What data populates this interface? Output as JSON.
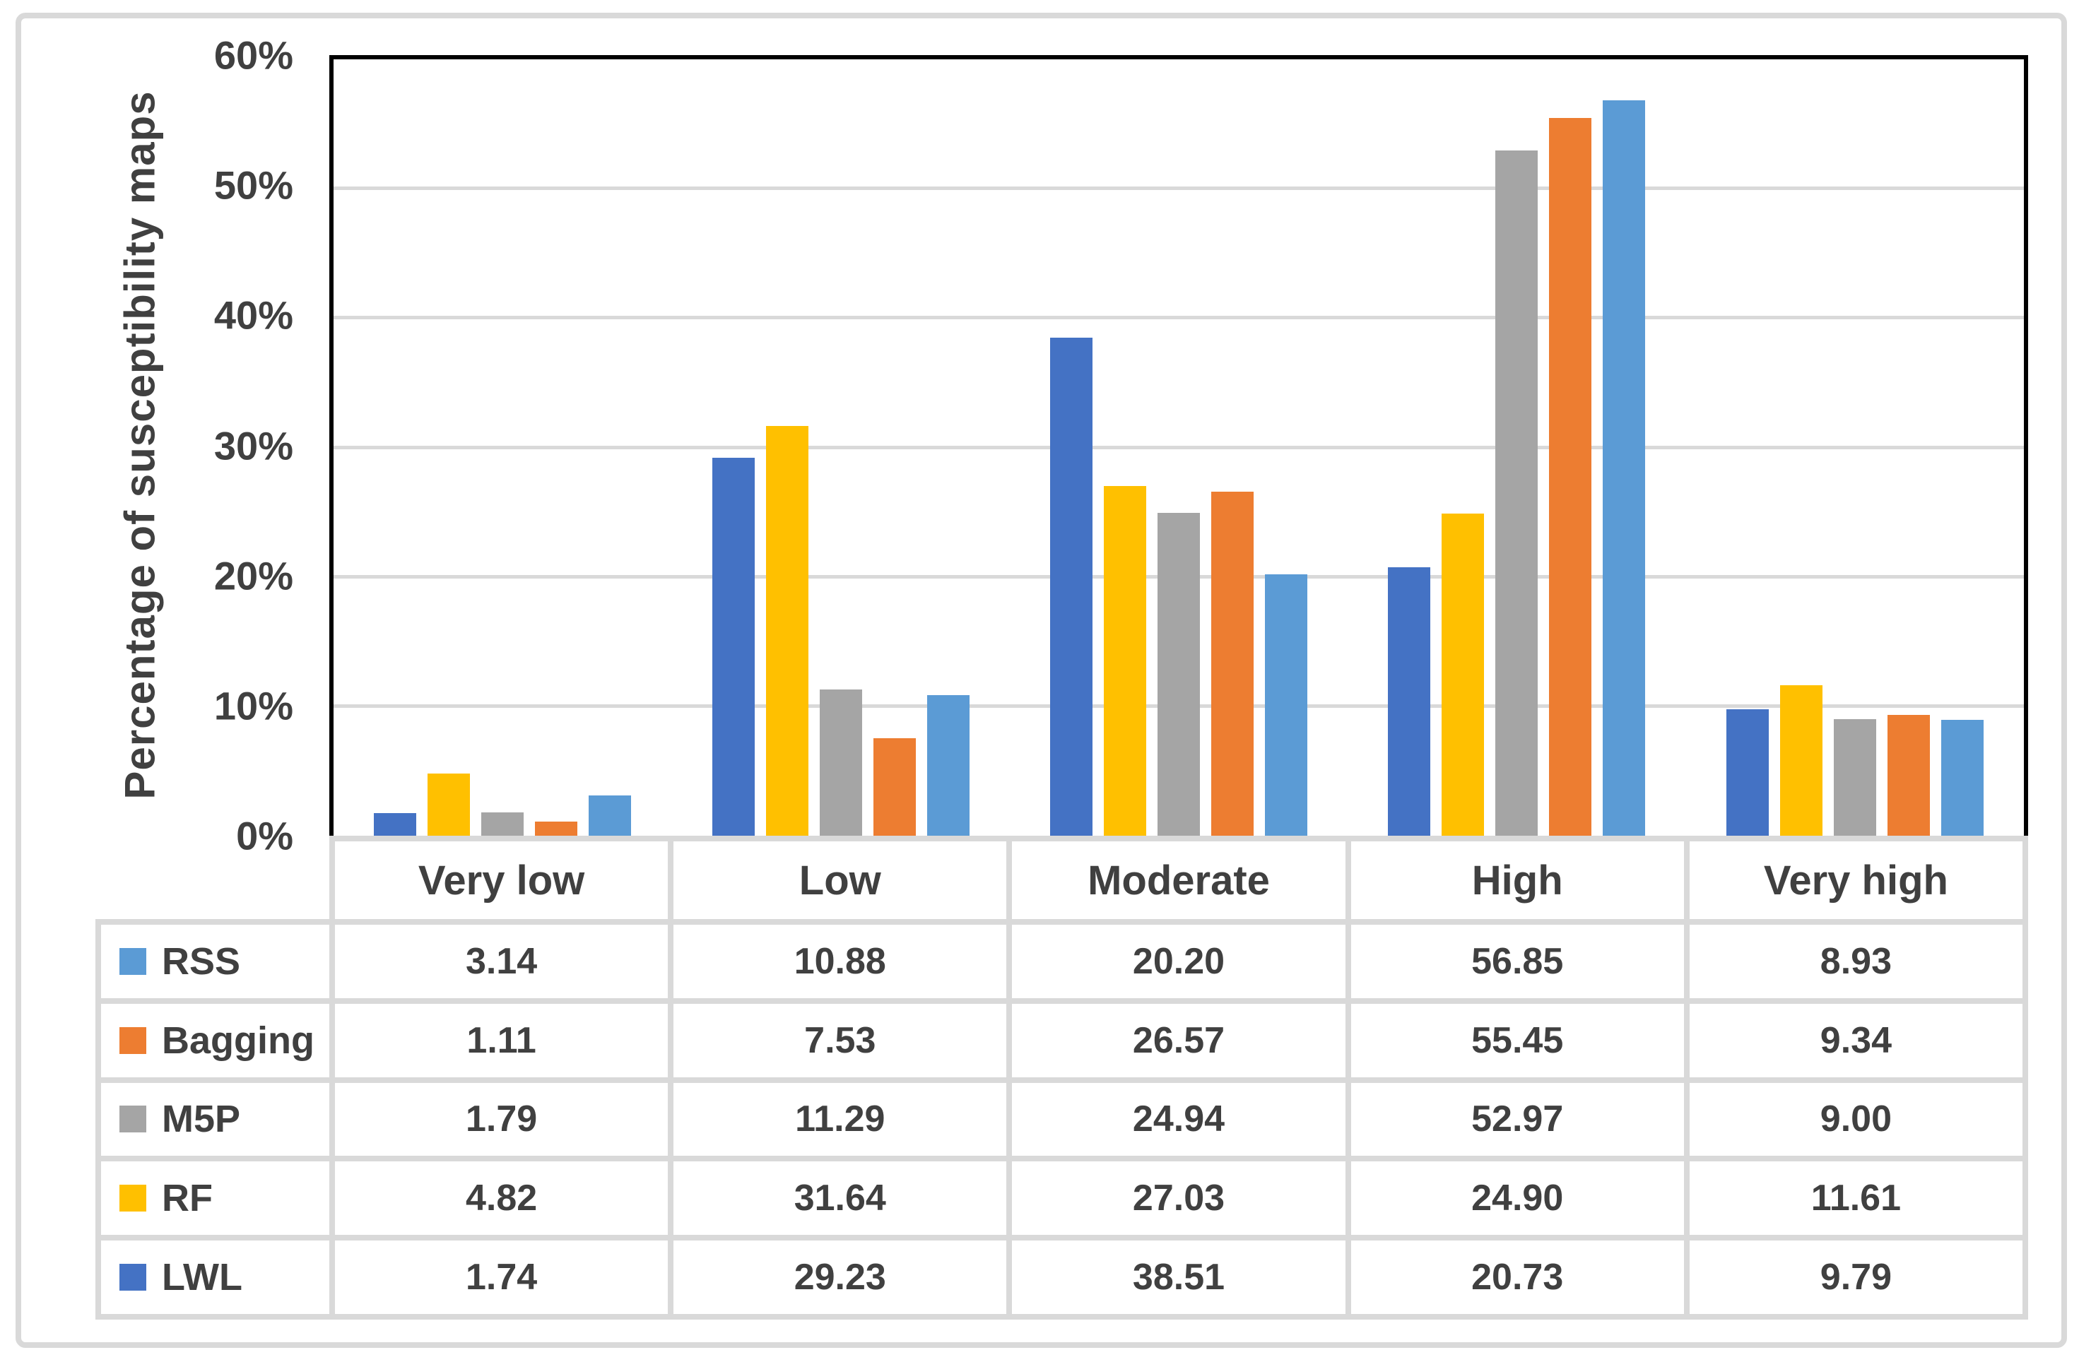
{
  "chart_data": {
    "type": "bar",
    "title": "",
    "xlabel": "",
    "ylabel": "Percentage of susceptibility maps",
    "ylim": [
      0,
      60
    ],
    "y_tick_step": 10,
    "y_ticks": [
      {
        "value": 0,
        "label": "0%"
      },
      {
        "value": 10,
        "label": "10%"
      },
      {
        "value": 20,
        "label": "20%"
      },
      {
        "value": 30,
        "label": "30%"
      },
      {
        "value": 40,
        "label": "40%"
      },
      {
        "value": 50,
        "label": "50%"
      },
      {
        "value": 60,
        "label": "60%"
      }
    ],
    "grid": true,
    "legend_position": "left-of-data-table",
    "categories": [
      "Very low",
      "Low",
      "Moderate",
      "High",
      "Very high"
    ],
    "series": [
      {
        "name": "LWL",
        "color": "#4472C4",
        "values": [
          1.74,
          29.23,
          38.51,
          20.73,
          9.79
        ]
      },
      {
        "name": "RF",
        "color": "#FFC000",
        "values": [
          4.82,
          31.64,
          27.03,
          24.9,
          11.61
        ]
      },
      {
        "name": "M5P",
        "color": "#A5A5A5",
        "values": [
          1.79,
          11.29,
          24.94,
          52.97,
          9.0
        ]
      },
      {
        "name": "Bagging",
        "color": "#ED7D31",
        "values": [
          1.11,
          7.53,
          26.57,
          55.45,
          9.34
        ]
      },
      {
        "name": "RSS",
        "color": "#5B9BD5",
        "values": [
          3.14,
          10.88,
          20.2,
          56.85,
          8.93
        ]
      }
    ]
  },
  "data_table": {
    "column_headers": [
      "Very low",
      "Low",
      "Moderate",
      "High",
      "Very high"
    ],
    "rows": [
      {
        "name": "RSS",
        "color": "#5B9BD5",
        "values": [
          "3.14",
          "10.88",
          "20.20",
          "56.85",
          "8.93"
        ]
      },
      {
        "name": "Bagging",
        "color": "#ED7D31",
        "values": [
          "1.11",
          "7.53",
          "26.57",
          "55.45",
          "9.34"
        ]
      },
      {
        "name": "M5P",
        "color": "#A5A5A5",
        "values": [
          "1.79",
          "11.29",
          "24.94",
          "52.97",
          "9.00"
        ]
      },
      {
        "name": "RF",
        "color": "#FFC000",
        "values": [
          "4.82",
          "31.64",
          "27.03",
          "24.90",
          "11.61"
        ]
      },
      {
        "name": "LWL",
        "color": "#4472C4",
        "values": [
          "1.74",
          "29.23",
          "38.51",
          "20.73",
          "9.79"
        ]
      }
    ]
  },
  "colors": {
    "bar_lwl": "#4472C4",
    "bar_rf": "#FFC000",
    "bar_m5p": "#A5A5A5",
    "bar_bagging": "#ED7D31",
    "bar_rss": "#5B9BD5",
    "gridline": "#D9D9D9",
    "table_border": "#D9D9D9",
    "figure_border": "#D9D9D9",
    "axis_line": "#000000",
    "text": "#404040",
    "background": "#FFFFFF"
  }
}
